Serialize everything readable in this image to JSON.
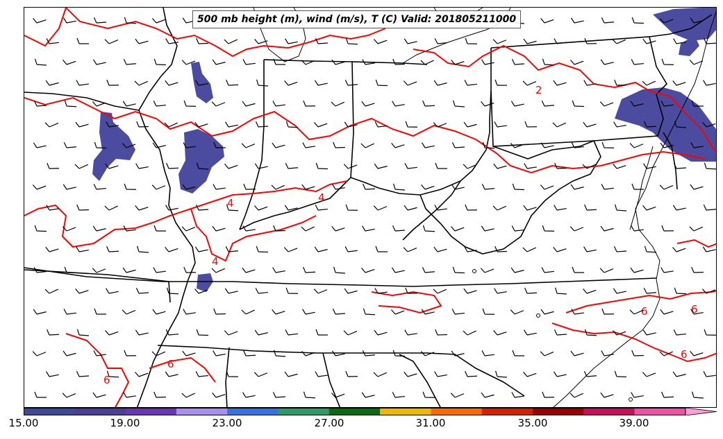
{
  "title": "500 mb height (m), wind (m/s), T (C) Valid: 201805211000",
  "colorbar": {
    "tick_labels": [
      "15.00",
      "19.00",
      "23.00",
      "27.00",
      "31.00",
      "35.00",
      "39.00"
    ],
    "colors": [
      "#3d4a9a",
      "#4b3f9b",
      "#6a35b6",
      "#a78ef0",
      "#3373e3",
      "#2e9a67",
      "#0a6b12",
      "#f0b800",
      "#ff6a00",
      "#d81f00",
      "#9a0000",
      "#c8105a",
      "#f24fa8",
      "#ff9fd6"
    ]
  },
  "contour_labels": [
    "2",
    "4",
    "4",
    "4",
    "6",
    "6",
    "6",
    "6",
    "6"
  ],
  "styles": {
    "contour_color": "#ff0000",
    "shading_color": "#4b4b9f",
    "border_color": "#000000"
  }
}
